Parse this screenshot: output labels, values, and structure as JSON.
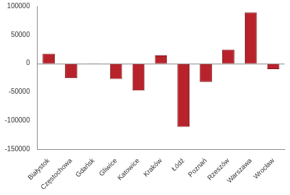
{
  "chart_data": {
    "type": "bar",
    "categories": [
      "Białystok",
      "Częstochowa",
      "Gdańsk",
      "Gliwice",
      "Katowice",
      "Kraków",
      "Łódź",
      "Poznań",
      "Rzeszów",
      "Warszawa",
      "Wrocław"
    ],
    "values": [
      17000,
      -26000,
      -1500,
      -27500,
      -47500,
      14000,
      -111000,
      -32500,
      24000,
      89000,
      -10000
    ],
    "color": "#b8232b",
    "ylim": [
      -150000,
      100000
    ],
    "yticks": [
      -150000,
      -100000,
      -50000,
      0,
      50000,
      100000
    ],
    "grid": false
  }
}
